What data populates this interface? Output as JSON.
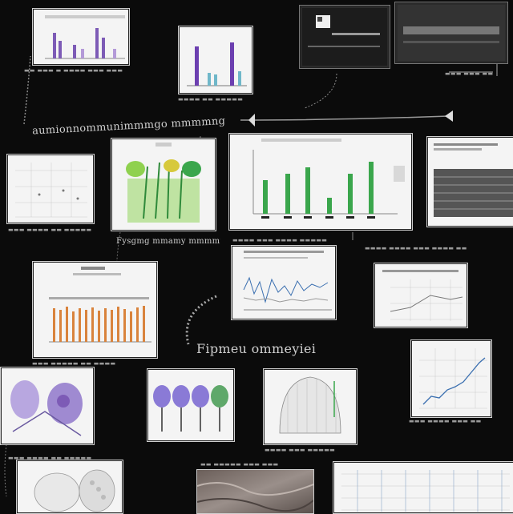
{
  "captions": {
    "top_ribbon": "aumionnommunimmmgo mmmmng",
    "middle_row": "Fysgmg mmamy mmmmnrg mm",
    "center": "Fipmeu ommeyiei"
  },
  "panels": [
    "bar-chart-purple",
    "bar-chart-tall-purple",
    "screen-dark-left",
    "screen-dark-right",
    "grid-chart-left",
    "illustration-plants",
    "bar-chart-green",
    "table-right",
    "bar-chart-orange",
    "line-chart-wave",
    "grid-chart-lines",
    "line-chart-blue",
    "illustration-anatomy",
    "illustration-trees-purple",
    "illustration-mesh",
    "illustration-skull",
    "photo-texture",
    "plot-lines-right"
  ],
  "colors": {
    "background": "#0b0b0b",
    "purple": "#7d5bb6",
    "green": "#3aa64c",
    "orange": "#d9833c",
    "blue": "#3a6fb0"
  }
}
